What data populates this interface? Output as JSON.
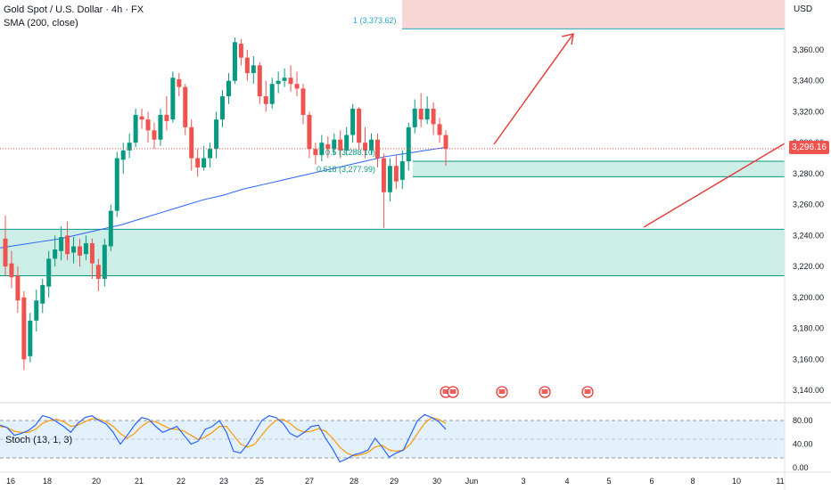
{
  "header": {
    "symbol_title": "Gold Spot / U.S. Dollar · 4h · FX",
    "indicator": "SMA (200, close)",
    "currency": "USD"
  },
  "price_axis": {
    "labels": [
      "3,360.00",
      "3,340.00",
      "3,320.00",
      "3,300.00",
      "3,280.00",
      "3,260.00",
      "3,240.00",
      "3,220.00",
      "3,200.00",
      "3,180.00",
      "3,160.00",
      "3,140.00"
    ],
    "values": [
      3360,
      3340,
      3320,
      3300,
      3280,
      3260,
      3240,
      3220,
      3200,
      3180,
      3160,
      3140
    ],
    "current_price": "3,296.16",
    "current_value": 3296.16
  },
  "stoch_axis": {
    "labels": [
      "80.00",
      "40.00",
      "0.00"
    ],
    "values": [
      80,
      40,
      0
    ]
  },
  "time_axis": {
    "labels": [
      "16",
      "18",
      "20",
      "21",
      "22",
      "23",
      "25",
      "27",
      "28",
      "29",
      "30",
      "Jun",
      "3",
      "4",
      "5",
      "6",
      "8",
      "10",
      "11"
    ]
  },
  "stoch_panel": {
    "label": "Stoch (13, 1, 3)"
  },
  "fib": {
    "level_1": "1 (3,373.62)",
    "level_05": "0.5 (3,288.10)",
    "level_0618": "0.618 (3,277.99)"
  },
  "colors": {
    "up": "#089981",
    "down": "#ef5350",
    "zone_fill": "#cdeee6",
    "zone_border": "#089981",
    "resistance_fill": "#f9d6d6",
    "sma": "#2962ff",
    "stoch_k": "#2962ff",
    "stoch_d": "#ff9800",
    "arrow": "#e53935"
  },
  "chart_data": {
    "type": "candlestick",
    "candles": [
      {
        "o": 3238,
        "c": 3220,
        "h": 3253,
        "l": 3214
      },
      {
        "o": 3222,
        "c": 3213,
        "h": 3230,
        "l": 3206
      },
      {
        "o": 3214,
        "c": 3198,
        "h": 3220,
        "l": 3190
      },
      {
        "o": 3200,
        "c": 3160,
        "h": 3204,
        "l": 3153
      },
      {
        "o": 3162,
        "c": 3185,
        "h": 3190,
        "l": 3158
      },
      {
        "o": 3185,
        "c": 3198,
        "h": 3205,
        "l": 3178
      },
      {
        "o": 3196,
        "c": 3208,
        "h": 3212,
        "l": 3190
      },
      {
        "o": 3207,
        "c": 3225,
        "h": 3230,
        "l": 3200
      },
      {
        "o": 3225,
        "c": 3231,
        "h": 3240,
        "l": 3220
      },
      {
        "o": 3230,
        "c": 3239,
        "h": 3246,
        "l": 3224
      },
      {
        "o": 3240,
        "c": 3228,
        "h": 3249,
        "l": 3224
      },
      {
        "o": 3229,
        "c": 3233,
        "h": 3239,
        "l": 3222
      },
      {
        "o": 3233,
        "c": 3227,
        "h": 3238,
        "l": 3220
      },
      {
        "o": 3228,
        "c": 3235,
        "h": 3240,
        "l": 3224
      },
      {
        "o": 3235,
        "c": 3222,
        "h": 3238,
        "l": 3212
      },
      {
        "o": 3221,
        "c": 3212,
        "h": 3225,
        "l": 3204
      },
      {
        "o": 3212,
        "c": 3234,
        "h": 3238,
        "l": 3207
      },
      {
        "o": 3233,
        "c": 3256,
        "h": 3260,
        "l": 3230
      },
      {
        "o": 3256,
        "c": 3290,
        "h": 3294,
        "l": 3252
      },
      {
        "o": 3289,
        "c": 3295,
        "h": 3300,
        "l": 3280
      },
      {
        "o": 3295,
        "c": 3300,
        "h": 3306,
        "l": 3290
      },
      {
        "o": 3300,
        "c": 3318,
        "h": 3322,
        "l": 3297
      },
      {
        "o": 3317,
        "c": 3315,
        "h": 3322,
        "l": 3309
      },
      {
        "o": 3315,
        "c": 3308,
        "h": 3320,
        "l": 3300
      },
      {
        "o": 3308,
        "c": 3302,
        "h": 3313,
        "l": 3296
      },
      {
        "o": 3302,
        "c": 3318,
        "h": 3322,
        "l": 3298
      },
      {
        "o": 3318,
        "c": 3314,
        "h": 3330,
        "l": 3308
      },
      {
        "o": 3315,
        "c": 3342,
        "h": 3346,
        "l": 3313
      },
      {
        "o": 3341,
        "c": 3336,
        "h": 3345,
        "l": 3330
      },
      {
        "o": 3336,
        "c": 3310,
        "h": 3338,
        "l": 3305
      },
      {
        "o": 3310,
        "c": 3290,
        "h": 3315,
        "l": 3282
      },
      {
        "o": 3290,
        "c": 3284,
        "h": 3296,
        "l": 3278
      },
      {
        "o": 3284,
        "c": 3290,
        "h": 3298,
        "l": 3282
      },
      {
        "o": 3290,
        "c": 3296,
        "h": 3300,
        "l": 3284
      },
      {
        "o": 3296,
        "c": 3315,
        "h": 3320,
        "l": 3290
      },
      {
        "o": 3315,
        "c": 3330,
        "h": 3334,
        "l": 3310
      },
      {
        "o": 3330,
        "c": 3340,
        "h": 3345,
        "l": 3325
      },
      {
        "o": 3340,
        "c": 3365,
        "h": 3368,
        "l": 3338
      },
      {
        "o": 3364,
        "c": 3355,
        "h": 3367,
        "l": 3350
      },
      {
        "o": 3355,
        "c": 3345,
        "h": 3360,
        "l": 3340
      },
      {
        "o": 3345,
        "c": 3350,
        "h": 3356,
        "l": 3338
      },
      {
        "o": 3350,
        "c": 3330,
        "h": 3352,
        "l": 3325
      },
      {
        "o": 3330,
        "c": 3325,
        "h": 3340,
        "l": 3320
      },
      {
        "o": 3325,
        "c": 3338,
        "h": 3342,
        "l": 3322
      },
      {
        "o": 3338,
        "c": 3340,
        "h": 3346,
        "l": 3332
      },
      {
        "o": 3340,
        "c": 3342,
        "h": 3348,
        "l": 3336
      },
      {
        "o": 3342,
        "c": 3338,
        "h": 3350,
        "l": 3333
      },
      {
        "o": 3338,
        "c": 3335,
        "h": 3346,
        "l": 3330
      },
      {
        "o": 3335,
        "c": 3318,
        "h": 3338,
        "l": 3312
      },
      {
        "o": 3318,
        "c": 3296,
        "h": 3320,
        "l": 3290
      },
      {
        "o": 3296,
        "c": 3292,
        "h": 3300,
        "l": 3286
      },
      {
        "o": 3292,
        "c": 3300,
        "h": 3305,
        "l": 3288
      },
      {
        "o": 3299,
        "c": 3296,
        "h": 3304,
        "l": 3290
      },
      {
        "o": 3296,
        "c": 3302,
        "h": 3306,
        "l": 3292
      },
      {
        "o": 3302,
        "c": 3295,
        "h": 3308,
        "l": 3290
      },
      {
        "o": 3295,
        "c": 3305,
        "h": 3310,
        "l": 3292
      },
      {
        "o": 3305,
        "c": 3322,
        "h": 3325,
        "l": 3300
      },
      {
        "o": 3322,
        "c": 3300,
        "h": 3323,
        "l": 3296
      },
      {
        "o": 3300,
        "c": 3295,
        "h": 3310,
        "l": 3290
      },
      {
        "o": 3295,
        "c": 3302,
        "h": 3306,
        "l": 3292
      },
      {
        "o": 3302,
        "c": 3290,
        "h": 3306,
        "l": 3284
      },
      {
        "o": 3290,
        "c": 3268,
        "h": 3293,
        "l": 3245
      },
      {
        "o": 3268,
        "c": 3285,
        "h": 3290,
        "l": 3262
      },
      {
        "o": 3285,
        "c": 3275,
        "h": 3292,
        "l": 3270
      },
      {
        "o": 3276,
        "c": 3288,
        "h": 3295,
        "l": 3270
      },
      {
        "o": 3288,
        "c": 3310,
        "h": 3313,
        "l": 3282
      },
      {
        "o": 3310,
        "c": 3322,
        "h": 3328,
        "l": 3306
      },
      {
        "o": 3322,
        "c": 3315,
        "h": 3332,
        "l": 3310
      },
      {
        "o": 3315,
        "c": 3322,
        "h": 3330,
        "l": 3312
      },
      {
        "o": 3322,
        "c": 3312,
        "h": 3326,
        "l": 3305
      },
      {
        "o": 3312,
        "c": 3305,
        "h": 3316,
        "l": 3300
      },
      {
        "o": 3305,
        "c": 3296,
        "h": 3308,
        "l": 3285
      }
    ],
    "sma": [
      3232,
      3234,
      3236,
      3238,
      3241,
      3244,
      3247,
      3251,
      3255,
      3259,
      3263,
      3266,
      3270,
      3273,
      3276,
      3279,
      3282,
      3285,
      3288,
      3291,
      3293,
      3295,
      3297
    ],
    "stoch_k": [
      72,
      68,
      55,
      58,
      63,
      72,
      88,
      85,
      78,
      70,
      60,
      75,
      85,
      88,
      80,
      74,
      60,
      40,
      55,
      72,
      85,
      82,
      70,
      60,
      65,
      70,
      55,
      40,
      45,
      65,
      70,
      80,
      60,
      28,
      25,
      40,
      60,
      80,
      88,
      85,
      75,
      58,
      52,
      60,
      70,
      72,
      50,
      32,
      10,
      15,
      22,
      25,
      30,
      50,
      35,
      18,
      25,
      30,
      55,
      80,
      90,
      85,
      78,
      65
    ],
    "stoch_d": [
      70,
      68,
      62,
      60,
      60,
      65,
      75,
      80,
      82,
      78,
      70,
      72,
      78,
      83,
      82,
      78,
      70,
      58,
      50,
      58,
      70,
      78,
      78,
      72,
      66,
      65,
      62,
      55,
      48,
      52,
      60,
      70,
      70,
      55,
      40,
      35,
      40,
      55,
      70,
      80,
      82,
      75,
      65,
      60,
      62,
      66,
      62,
      50,
      35,
      25,
      20,
      22,
      26,
      35,
      38,
      30,
      28,
      30,
      40,
      58,
      75,
      85,
      82,
      75
    ],
    "zones": [
      {
        "low": 3214,
        "high": 3244
      },
      {
        "low": 3278,
        "high": 3288
      },
      {
        "low": 3373.62,
        "high": 3400
      }
    ],
    "xlabel": "",
    "ylabel": "",
    "ylim": [
      3130,
      3380
    ]
  }
}
